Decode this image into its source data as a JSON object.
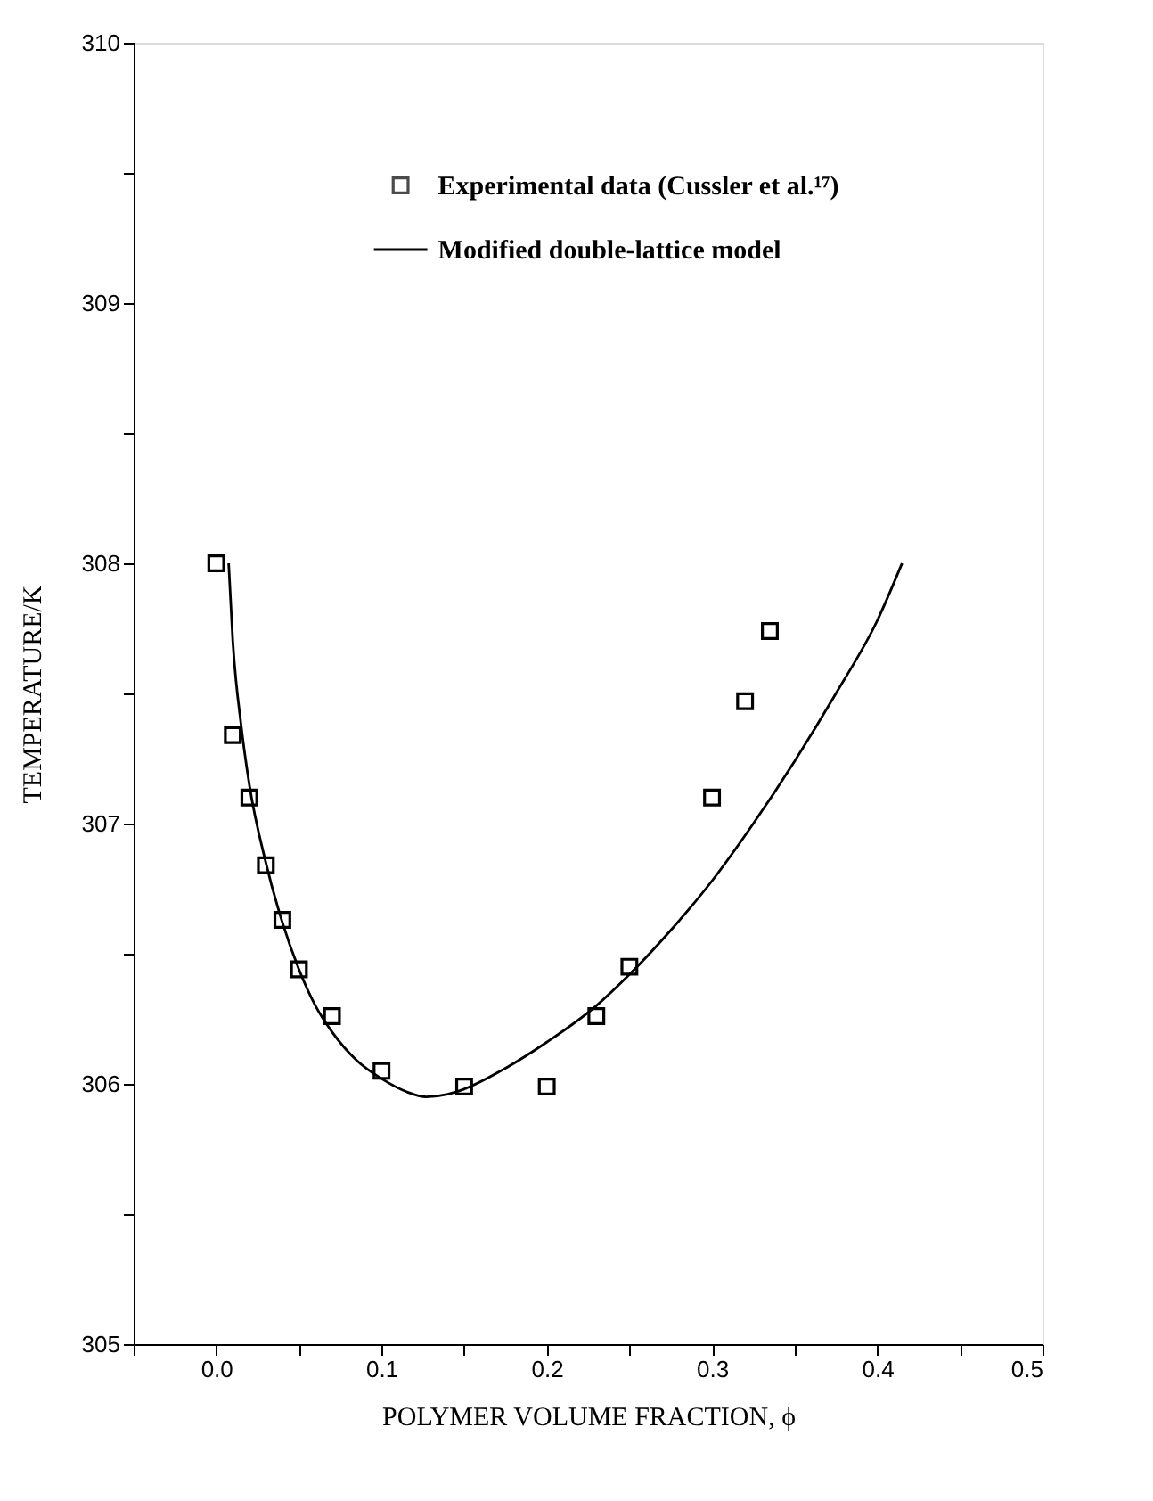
{
  "chart_data": {
    "type": "scatter",
    "xlabel": "POLYMER VOLUME FRACTION, ϕ",
    "ylabel": "TEMPERATURE/K",
    "xlim": [
      -0.05,
      0.5
    ],
    "ylim": [
      305,
      310
    ],
    "xticks": [
      {
        "value": -0.05,
        "label": null
      },
      {
        "value": 0,
        "label": "0.0"
      },
      {
        "value": 0.05,
        "label": null
      },
      0.1,
      {
        "value": 0.15,
        "label": null
      },
      0.2,
      {
        "value": 0.25,
        "label": null
      },
      0.3,
      {
        "value": 0.35,
        "label": null
      },
      0.4,
      {
        "value": 0.45,
        "label": null
      },
      0.5
    ],
    "yticks": [
      305,
      {
        "value": 305.5,
        "label": null
      },
      306,
      {
        "value": 306.5,
        "label": null
      },
      307,
      {
        "value": 307.5,
        "label": null
      },
      308,
      {
        "value": 308.5,
        "label": null
      },
      309,
      {
        "value": 309.5,
        "label": null
      },
      310
    ],
    "grid": false,
    "legend": "top",
    "series": [
      {
        "name": "Experimental data (Cussler et al.¹⁷)",
        "marker": "square",
        "color": "#000000",
        "x": [
          0.0,
          0.01,
          0.02,
          0.03,
          0.04,
          0.05,
          0.07,
          0.1,
          0.15,
          0.2,
          0.23,
          0.25,
          0.3,
          0.32,
          0.335
        ],
        "values": [
          308.0,
          307.34,
          307.1,
          306.84,
          306.63,
          306.44,
          306.26,
          306.05,
          305.99,
          305.99,
          306.26,
          306.45,
          307.1,
          307.47,
          307.74
        ]
      },
      {
        "name": "Modified double-lattice model",
        "type": "line",
        "marker": "none",
        "line_style": "solid",
        "color": "#000000",
        "x": [
          0.0075,
          0.01,
          0.015,
          0.02,
          0.03,
          0.04,
          0.05,
          0.06,
          0.07,
          0.085,
          0.1,
          0.115,
          0.127,
          0.14,
          0.15,
          0.175,
          0.2,
          0.23,
          0.25,
          0.275,
          0.3,
          0.325,
          0.35,
          0.375,
          0.4,
          0.415
        ],
        "values": [
          308.0,
          307.7,
          307.38,
          307.15,
          306.85,
          306.62,
          306.44,
          306.3,
          306.2,
          306.09,
          306.02,
          305.97,
          305.95,
          305.96,
          305.98,
          306.06,
          306.16,
          306.3,
          306.42,
          306.59,
          306.78,
          307.0,
          307.24,
          307.5,
          307.78,
          308.0
        ]
      }
    ]
  }
}
